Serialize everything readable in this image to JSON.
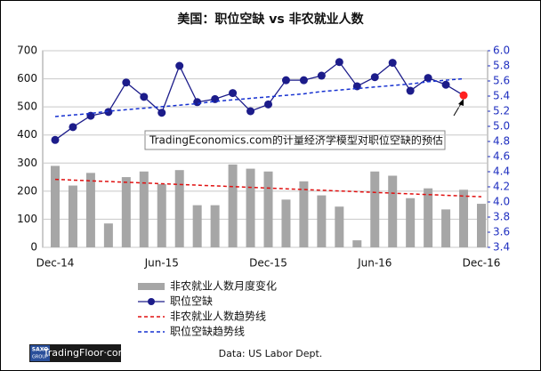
{
  "chart_data": {
    "type": "bar_line",
    "title": "美国：职位空缺 vs 非农就业人数",
    "categories": [
      "Dec-14",
      null,
      null,
      null,
      null,
      null,
      "Jun-15",
      null,
      null,
      null,
      null,
      null,
      "Dec-15",
      null,
      null,
      null,
      null,
      null,
      "Jun-16",
      null,
      null,
      null,
      null,
      null,
      "Dec-16"
    ],
    "ylim": [
      0,
      700
    ],
    "yticks": [
      0,
      100,
      200,
      300,
      400,
      500,
      600,
      700
    ],
    "y2lim": [
      3.4,
      6.0
    ],
    "y2ticks": [
      3.4,
      3.6,
      3.8,
      {
        "value": 4.0,
        "label": "4.0"
      },
      4.2,
      4.4,
      4.6,
      4.8,
      {
        "value": 5.0,
        "label": "5.0"
      },
      5.2,
      5.4,
      5.6,
      5.8,
      {
        "value": 6.0,
        "label": "6.0"
      }
    ],
    "grid": true,
    "series": [
      {
        "name": "非农就业人数月度变化",
        "kind": "bar",
        "color": "#a6a6a6",
        "values": [
          290,
          220,
          265,
          85,
          250,
          270,
          225,
          275,
          150,
          150,
          295,
          280,
          270,
          170,
          235,
          185,
          145,
          25,
          270,
          255,
          175,
          210,
          135,
          205,
          155
        ]
      },
      {
        "name": "职位空缺",
        "kind": "line",
        "axis": "y2",
        "color": "#1c1c8a",
        "last_color": "#ff2020",
        "values": [
          4.82,
          4.99,
          5.14,
          5.19,
          5.58,
          5.39,
          5.18,
          5.8,
          5.32,
          5.36,
          5.44,
          5.2,
          5.29,
          5.61,
          5.61,
          5.67,
          5.85,
          5.53,
          5.65,
          5.84,
          5.47,
          5.64,
          5.55,
          5.41,
          null
        ]
      },
      {
        "name": "非农就业人数趋势线",
        "kind": "trend",
        "color": "#e01010",
        "values": [
          242,
          239.4,
          236.8,
          234.3,
          231.7,
          229.1,
          226.5,
          223.9,
          221.3,
          218.8,
          216.2,
          213.6,
          211,
          208.4,
          205.8,
          203.3,
          200.7,
          198.1,
          195.5,
          192.9,
          190.3,
          187.8,
          185.2,
          182.6,
          180
        ]
      },
      {
        "name": "职位空缺趋势线",
        "kind": "trend",
        "axis": "y2",
        "color": "#1530d0",
        "values": [
          5.13,
          5.15,
          5.17,
          5.2,
          5.22,
          5.24,
          5.26,
          5.28,
          5.3,
          5.33,
          5.35,
          5.37,
          5.39,
          5.41,
          5.43,
          5.46,
          5.48,
          5.5,
          5.52,
          5.54,
          5.56,
          5.59,
          5.61,
          5.63,
          null
        ]
      }
    ],
    "annotation": "TradingEconomics.com的计量经济学模型对职位空缺的预估",
    "source": "Data: US Labor Dept.",
    "branding": [
      "SAXO",
      "GROUP",
      "TradingFloor·com"
    ]
  }
}
